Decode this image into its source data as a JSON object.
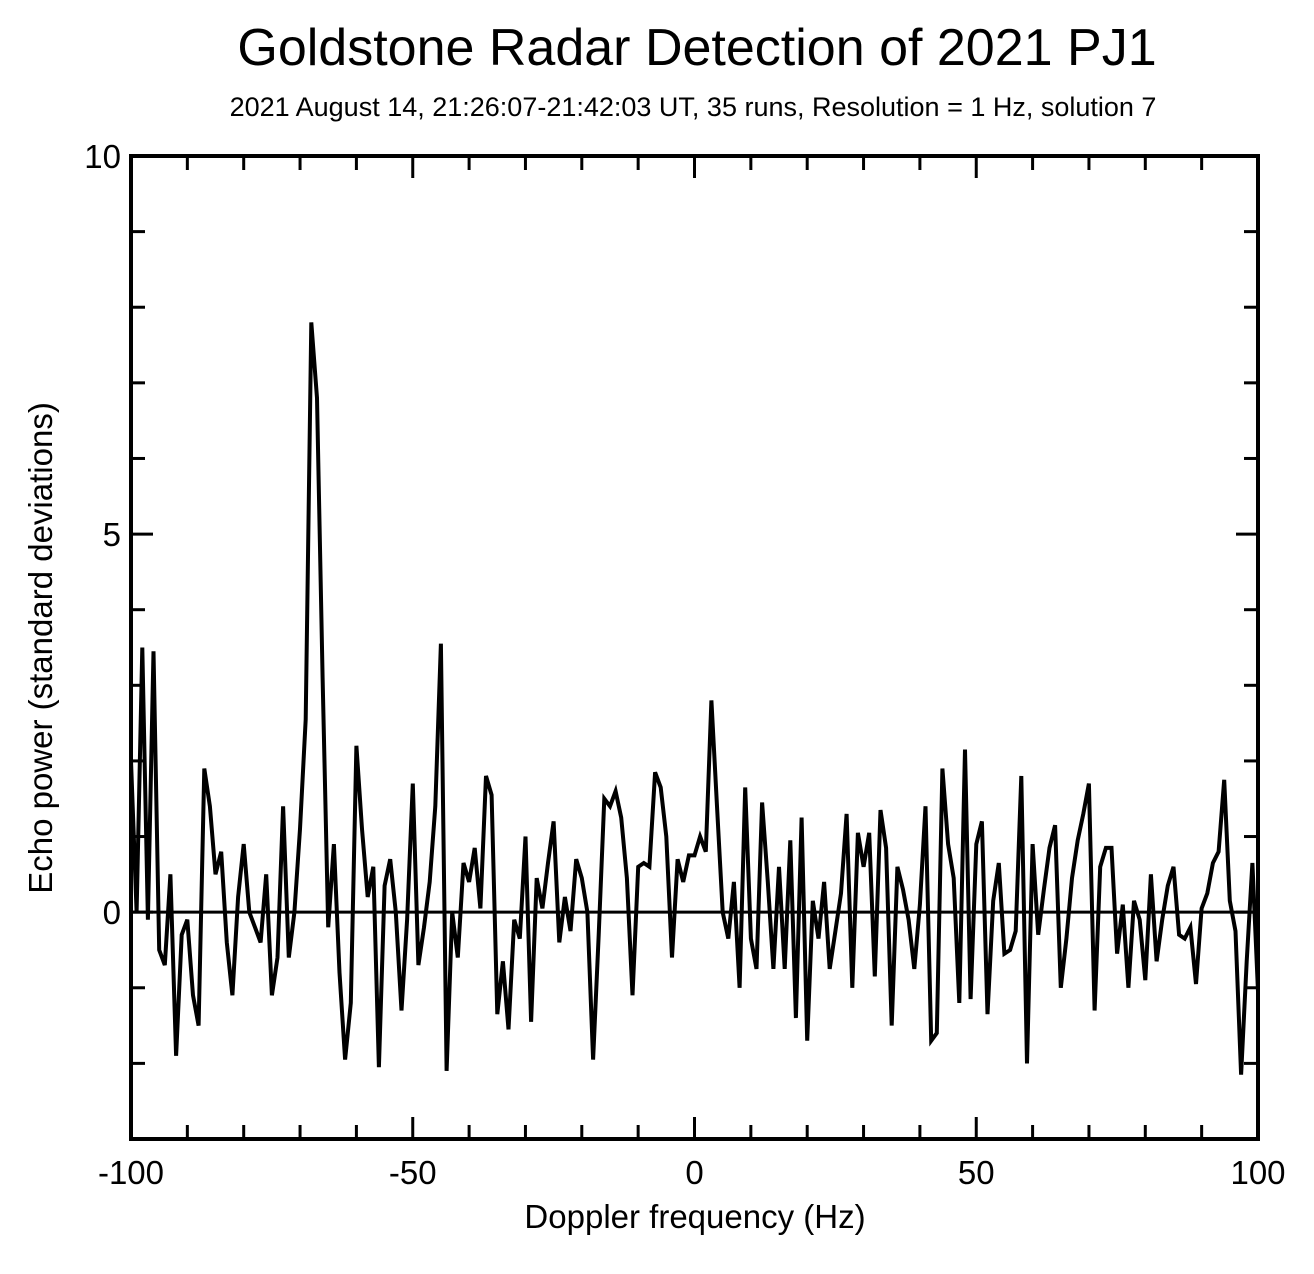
{
  "chart_data": {
    "type": "line",
    "title": "Goldstone Radar Detection of 2021 PJ1",
    "subtitle": "2021 August 14, 21:26:07-21:42:03 UT, 35 runs, Resolution = 1 Hz, solution 7",
    "xlabel": "Doppler frequency (Hz)",
    "ylabel": "Echo power (standard deviations)",
    "xlim": [
      -100,
      100
    ],
    "ylim": [
      -3,
      10
    ],
    "x_ticks": [
      -100,
      -50,
      0,
      50,
      100
    ],
    "x_tick_labels": [
      "-100",
      "-50",
      "0",
      "50",
      "100"
    ],
    "x_minor_step": 10,
    "y_ticks": [
      0,
      5,
      10
    ],
    "y_tick_labels": [
      "0",
      "5",
      "10"
    ],
    "y_minor_step": 1,
    "zero_line": true,
    "grid": false,
    "line_color": "#000000",
    "x_start": -100,
    "x_step": 1,
    "values": [
      2.0,
      0,
      3.5,
      -0.1,
      3.45,
      -0.5,
      -0.7,
      0.5,
      -1.9,
      -0.3,
      -0.1,
      -1.1,
      -1.5,
      1.9,
      1.4,
      0.5,
      0.8,
      -0.4,
      -1.1,
      0.2,
      0.9,
      0,
      -0.2,
      -0.4,
      0.5,
      -1.1,
      -0.6,
      1.4,
      -0.6,
      0,
      1.1,
      2.55,
      7.8,
      6.8,
      3.1,
      -0.2,
      0.9,
      -0.8,
      -1.95,
      -1.2,
      2.2,
      1.1,
      0.2,
      0.6,
      -2.05,
      0.35,
      0.7,
      0,
      -1.3,
      -0.1,
      1.7,
      -0.7,
      -0.2,
      0.4,
      1.4,
      3.55,
      -2.1,
      0,
      -0.6,
      0.65,
      0.4,
      0.85,
      0.05,
      1.8,
      1.55,
      -1.35,
      -0.65,
      -1.55,
      -0.1,
      -0.35,
      1.0,
      -1.45,
      0.45,
      0.05,
      0.65,
      1.2,
      -0.4,
      0.2,
      -0.25,
      0.7,
      0.45,
      0,
      -1.95,
      -0.3,
      1.5,
      1.4,
      1.6,
      1.25,
      0.45,
      -1.1,
      0.6,
      0.65,
      0.6,
      1.85,
      1.65,
      1.0,
      -0.6,
      0.7,
      0.4,
      0.75,
      0.75,
      1.0,
      0.8,
      2.8,
      1.4,
      0,
      -0.35,
      0.4,
      -1.0,
      1.65,
      -0.35,
      -0.75,
      1.45,
      0.4,
      -0.75,
      0.6,
      -0.75,
      0.95,
      -1.4,
      1.25,
      -1.7,
      0.15,
      -0.35,
      0.4,
      -0.75,
      -0.25,
      0.25,
      1.3,
      -1.0,
      1.05,
      0.6,
      1.05,
      -0.85,
      1.35,
      0.85,
      -1.5,
      0.6,
      0.3,
      -0.1,
      -0.75,
      0.1,
      1.4,
      -1.7,
      -1.6,
      1.9,
      0.9,
      0.45,
      -1.2,
      2.15,
      -1.15,
      0.9,
      1.2,
      -1.35,
      0.15,
      0.65,
      -0.55,
      -0.5,
      -0.25,
      1.8,
      -2.0,
      0.9,
      -0.3,
      0.3,
      0.85,
      1.15,
      -1.0,
      -0.35,
      0.45,
      0.95,
      1.3,
      1.7,
      -1.3,
      0.6,
      0.85,
      0.85,
      -0.55,
      0.1,
      -1.0,
      0.15,
      -0.1,
      -0.9,
      0.5,
      -0.65,
      -0.1,
      0.35,
      0.6,
      -0.3,
      -0.35,
      -0.2,
      -0.95,
      0.05,
      0.25,
      0.65,
      0.8,
      1.75,
      0.15,
      -0.25,
      -2.15,
      -0.65,
      0.65,
      -1.05
    ]
  }
}
